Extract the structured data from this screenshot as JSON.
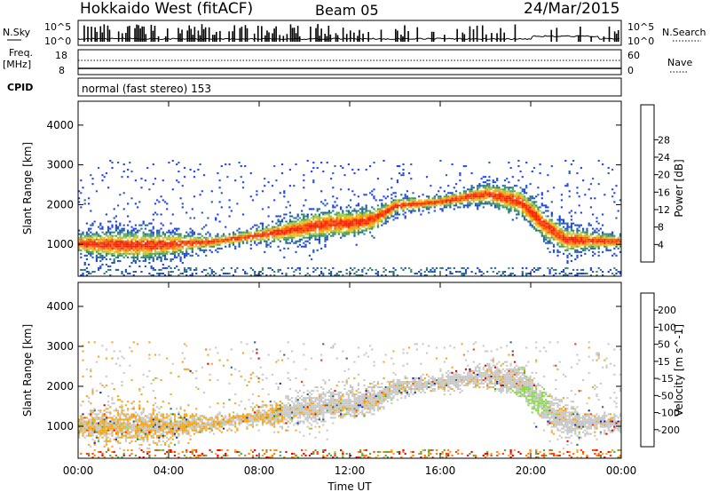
{
  "header": {
    "station": "Hokkaido West (fitACF)",
    "beam": "Beam 05",
    "date": "24/Mar/2015"
  },
  "noise_panel": {
    "left_label": "N.Sky",
    "right_label": "N.Search",
    "ticks_left": [
      "10^5",
      "10^0"
    ],
    "ticks_right": [
      "10^5",
      "10^0"
    ]
  },
  "freq_panel": {
    "left_label_line1": "Freq.",
    "left_label_line2": "[MHz]",
    "ticks_left": [
      "18",
      "8"
    ],
    "right_label": "Nave",
    "ticks_right": [
      "60",
      "0"
    ]
  },
  "cpid_panel": {
    "left_label": "CPID",
    "text": "normal (fast stereo) 153"
  },
  "time_axis": {
    "label": "Time UT",
    "ticks": [
      "00:00",
      "04:00",
      "08:00",
      "12:00",
      "16:00",
      "20:00",
      "00:00"
    ]
  },
  "chart_data": [
    {
      "type": "heatmap",
      "title": "",
      "xlabel": "Time UT",
      "ylabel": "Slant Range [km]",
      "xlim": [
        0,
        24
      ],
      "ylim": [
        200,
        4600
      ],
      "y_ticks": [
        "1000",
        "2000",
        "3000",
        "4000"
      ],
      "colorbar": {
        "label": "Power [dB]",
        "ticks": [
          "4",
          "8",
          "12",
          "16",
          "20",
          "24",
          "28"
        ],
        "range": [
          0,
          30
        ],
        "colors": [
          "#1a3cff",
          "#1f5fa8",
          "#2f8a6a",
          "#4fa85a",
          "#9bd14a",
          "#f2c314",
          "#ff9a00",
          "#ff5a00",
          "#ff1a00"
        ]
      },
      "band_center_km": [
        [
          0,
          1000
        ],
        [
          3,
          950
        ],
        [
          6,
          1050
        ],
        [
          9,
          1300
        ],
        [
          11,
          1500
        ],
        [
          12,
          1500
        ],
        [
          13,
          1600
        ],
        [
          14,
          1950
        ],
        [
          16,
          2050
        ],
        [
          18,
          2250
        ],
        [
          19.5,
          2050
        ],
        [
          20.5,
          1500
        ],
        [
          21.5,
          1100
        ],
        [
          24,
          1050
        ]
      ],
      "scatter_top_km": 3000
    },
    {
      "type": "heatmap",
      "title": "",
      "xlabel": "Time UT",
      "ylabel": "Slant Range [km]",
      "xlim": [
        0,
        24
      ],
      "ylim": [
        200,
        4600
      ],
      "y_ticks": [
        "1000",
        "2000",
        "3000",
        "4000"
      ],
      "colorbar": {
        "label": "Velocity [m s^-1]",
        "ticks": [
          "200",
          "100",
          "50",
          "15",
          "-15",
          "-50",
          "-100",
          "-200"
        ],
        "colors": [
          "#1a2aa8",
          "#2f6a5a",
          "#4aa84a",
          "#8ad84a",
          "#c8c8c8",
          "#f2a81a",
          "#ff7a00",
          "#ff3a00",
          "#e00000"
        ]
      },
      "band_center_km": [
        [
          0,
          1000
        ],
        [
          3,
          950
        ],
        [
          6,
          1050
        ],
        [
          9,
          1300
        ],
        [
          11,
          1500
        ],
        [
          12,
          1500
        ],
        [
          13,
          1600
        ],
        [
          14,
          1950
        ],
        [
          16,
          2050
        ],
        [
          18,
          2250
        ],
        [
          19.5,
          2050
        ],
        [
          20.5,
          1500
        ],
        [
          21.5,
          1100
        ],
        [
          24,
          1050
        ]
      ]
    }
  ]
}
